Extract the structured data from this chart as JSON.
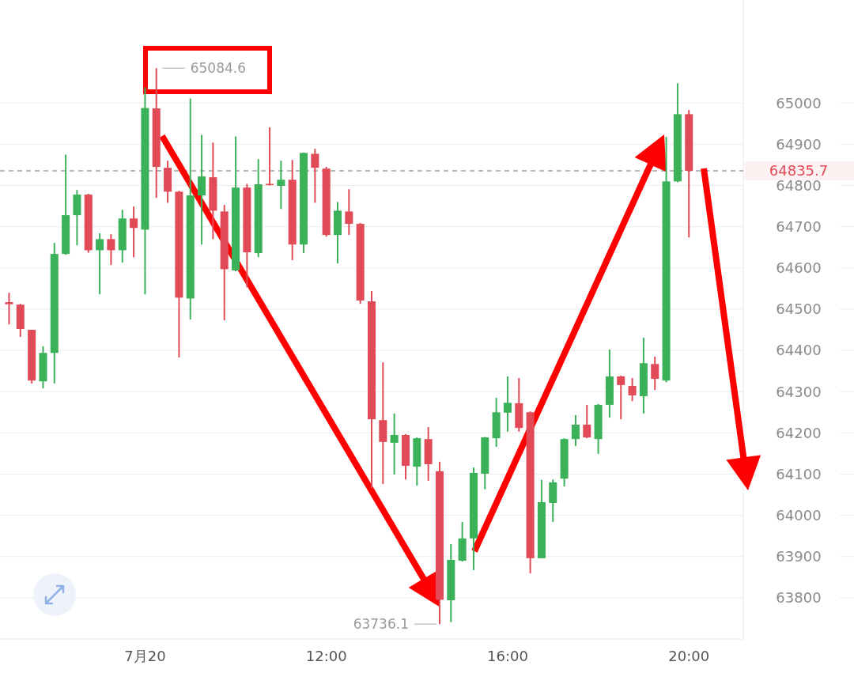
{
  "chart_data": {
    "type": "candlestick",
    "x": [
      5,
      5.25,
      5.5,
      5.75,
      6,
      6.25,
      6.5,
      6.75,
      7,
      7.25,
      7.5,
      7.75,
      8,
      8.25,
      8.5,
      8.75,
      9,
      9.25,
      9.5,
      9.75,
      10,
      10.25,
      10.5,
      10.75,
      11,
      11.25,
      11.5,
      11.75,
      12,
      12.25,
      12.5,
      12.75,
      13,
      13.25,
      13.5,
      13.75,
      14,
      14.25,
      14.5,
      14.75,
      15,
      15.25,
      15.5,
      15.75,
      16,
      16.25,
      16.5,
      16.75,
      17,
      17.25,
      17.5,
      17.75,
      18,
      18.25,
      18.5,
      18.75,
      19,
      19.25,
      19.5,
      19.75,
      20
    ],
    "ohlc": [
      [
        64517,
        64540,
        64463,
        64512
      ],
      [
        64511,
        64513,
        64433,
        64452
      ],
      [
        64450,
        64450,
        64320,
        64327
      ],
      [
        64325,
        64410,
        64308,
        64394
      ],
      [
        64394,
        64661,
        64320,
        64634
      ],
      [
        64634,
        64875,
        64632,
        64728
      ],
      [
        64728,
        64789,
        64655,
        64778
      ],
      [
        64778,
        64780,
        64637,
        64643
      ],
      [
        64643,
        64684,
        64536,
        64670
      ],
      [
        64670,
        64682,
        64607,
        64643
      ],
      [
        64643,
        64741,
        64613,
        64720
      ],
      [
        64720,
        64749,
        64626,
        64697
      ],
      [
        64693,
        65038,
        64536,
        64988
      ],
      [
        64987,
        65084.6,
        64770,
        64845
      ],
      [
        64843,
        64860,
        64758,
        64785
      ],
      [
        64785,
        64787,
        64383,
        64528
      ],
      [
        64526,
        65011,
        64475,
        64776
      ],
      [
        64776,
        64923,
        64657,
        64822
      ],
      [
        64820,
        64904,
        64670,
        64739
      ],
      [
        64737,
        64753,
        64473,
        64597
      ],
      [
        64594,
        64919,
        64592,
        64795
      ],
      [
        64795,
        64804,
        64553,
        64638
      ],
      [
        64636,
        64864,
        64626,
        64803
      ],
      [
        64804,
        64941,
        64800,
        64802
      ],
      [
        64799,
        64860,
        64743,
        64814
      ],
      [
        64814,
        64862,
        64619,
        64657
      ],
      [
        64657,
        64880,
        64636,
        64879
      ],
      [
        64877,
        64889,
        64758,
        64843
      ],
      [
        64841,
        64845,
        64676,
        64680
      ],
      [
        64680,
        64760,
        64611,
        64739
      ],
      [
        64737,
        64791,
        64680,
        64707
      ],
      [
        64707,
        64709,
        64513,
        64521
      ],
      [
        64519,
        64544,
        64066,
        64233
      ],
      [
        64231,
        64371,
        64076,
        64178
      ],
      [
        64176,
        64247,
        64099,
        64195
      ],
      [
        64195,
        64197,
        64087,
        64120
      ],
      [
        64118,
        64189,
        64072,
        64187
      ],
      [
        64185,
        64214,
        64084,
        64124
      ],
      [
        64107,
        64130,
        63736.1,
        63795
      ],
      [
        63794,
        63930,
        63741,
        63892
      ],
      [
        63890,
        63984,
        63888,
        63944
      ],
      [
        63944,
        64116,
        63867,
        64103
      ],
      [
        64101,
        64190,
        64063,
        64189
      ],
      [
        64187,
        64285,
        64166,
        64250
      ],
      [
        64249,
        64337,
        64203,
        64273
      ],
      [
        64272,
        64333,
        64203,
        64212
      ],
      [
        64250,
        64252,
        63859,
        63896
      ],
      [
        63896,
        64086,
        63896,
        64032
      ],
      [
        64030,
        64087,
        63984,
        64080
      ],
      [
        64089,
        64187,
        64070,
        64185
      ],
      [
        64185,
        64243,
        64168,
        64220
      ],
      [
        64220,
        64268,
        64187,
        64189
      ],
      [
        64185,
        64270,
        64149,
        64268
      ],
      [
        64268,
        64402,
        64237,
        64337
      ],
      [
        64337,
        64339,
        64233,
        64316
      ],
      [
        64314,
        64333,
        64277,
        64291
      ],
      [
        64289,
        64431,
        64247,
        64369
      ],
      [
        64367,
        64385,
        64304,
        64331
      ],
      [
        64327,
        64918,
        64323,
        64810
      ],
      [
        64810,
        65048,
        64808,
        64973
      ],
      [
        64973,
        64983,
        64674,
        64835.7
      ]
    ],
    "colors": [
      "#e04b57",
      "#e04b57",
      "#e04b57",
      "#3bb15a",
      "#3bb15a",
      "#3bb15a",
      "#3bb15a",
      "#e04b57",
      "#3bb15a",
      "#e04b57",
      "#3bb15a",
      "#e04b57",
      "#3bb15a",
      "#e04b57",
      "#e04b57",
      "#e04b57",
      "#3bb15a",
      "#3bb15a",
      "#e04b57",
      "#e04b57",
      "#3bb15a",
      "#e04b57",
      "#3bb15a",
      "#e04b57",
      "#3bb15a",
      "#e04b57",
      "#3bb15a",
      "#e04b57",
      "#e04b57",
      "#3bb15a",
      "#e04b57",
      "#e04b57",
      "#e04b57",
      "#e04b57",
      "#3bb15a",
      "#e04b57",
      "#3bb15a",
      "#e04b57",
      "#e04b57",
      "#3bb15a",
      "#3bb15a",
      "#3bb15a",
      "#3bb15a",
      "#3bb15a",
      "#3bb15a",
      "#e04b57",
      "#e04b57",
      "#3bb15a",
      "#3bb15a",
      "#3bb15a",
      "#3bb15a",
      "#e04b57",
      "#3bb15a",
      "#3bb15a",
      "#e04b57",
      "#e04b57",
      "#3bb15a",
      "#e04b57",
      "#3bb15a",
      "#3bb15a",
      "#e04b57"
    ],
    "xlim": [
      4.8,
      21.2
    ],
    "xticks": [
      {
        "value": 8,
        "label": "7月20"
      },
      {
        "value": 12,
        "label": "12:00"
      },
      {
        "value": 16,
        "label": "16:00"
      },
      {
        "value": 20,
        "label": "20:00"
      }
    ],
    "ylim": [
      63700,
      65250
    ],
    "yticks": [
      63800,
      63900,
      64000,
      64100,
      64200,
      64300,
      64400,
      64500,
      64600,
      64700,
      64800,
      64900,
      65000
    ],
    "grid": "y",
    "ref_lines": [
      {
        "axis": "y",
        "value": 64835.7,
        "label": "64835.7",
        "color": "#a0a0a0",
        "line_style": "dashed"
      }
    ],
    "annotations": [
      {
        "text": "65084.6",
        "x": 8.25,
        "y": 65084.6
      },
      {
        "text": "63736.1",
        "x": 14.5,
        "y": 63736.1
      }
    ]
  }
}
